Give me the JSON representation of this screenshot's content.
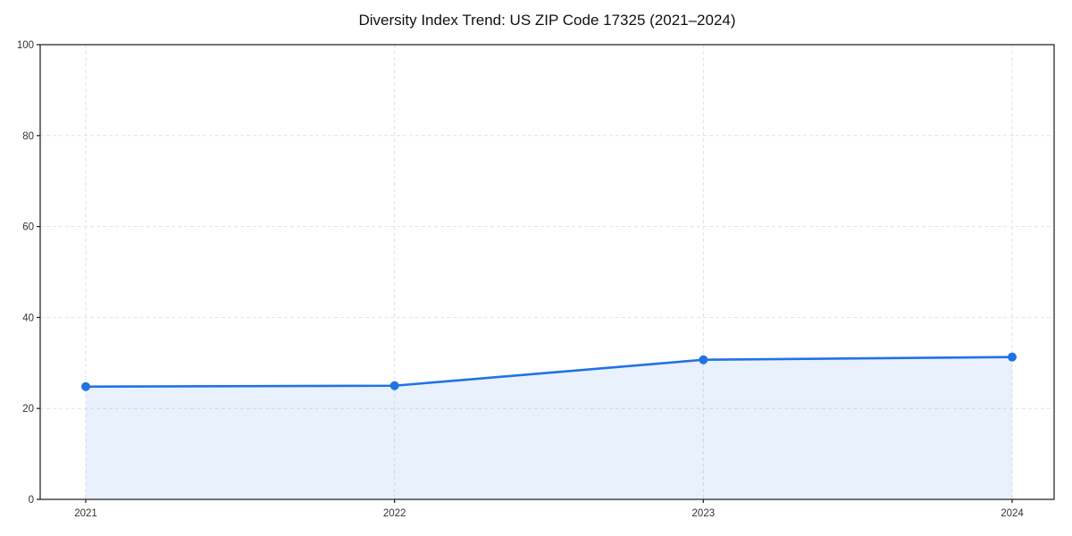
{
  "page": {
    "background": "#ffffff"
  },
  "chart_data": {
    "type": "area",
    "title": "Diversity Index Trend: US ZIP Code 17325 (2021–2024)",
    "x": [
      "2021",
      "2022",
      "2023",
      "2024"
    ],
    "series": [
      {
        "name": "Diversity Index",
        "values": [
          24.8,
          25.0,
          30.7,
          31.3
        ]
      }
    ],
    "xlabel": "",
    "ylabel": "",
    "ylim": [
      0,
      100
    ],
    "yticks": [
      0,
      20,
      40,
      60,
      80,
      100
    ],
    "grid": "dashed, horizontal and vertical",
    "legend": "none",
    "marker": "filled-circle",
    "colors": {
      "line": "#2272e2",
      "marker": "#2272e2",
      "fill_under_line": "#e9f1fc",
      "fill_opacity": 0.1,
      "grid": "#e2e2e2",
      "axis": "#1a1a1a",
      "tick_label": "#333333",
      "title": "#111111",
      "background": "#ffffff"
    }
  }
}
